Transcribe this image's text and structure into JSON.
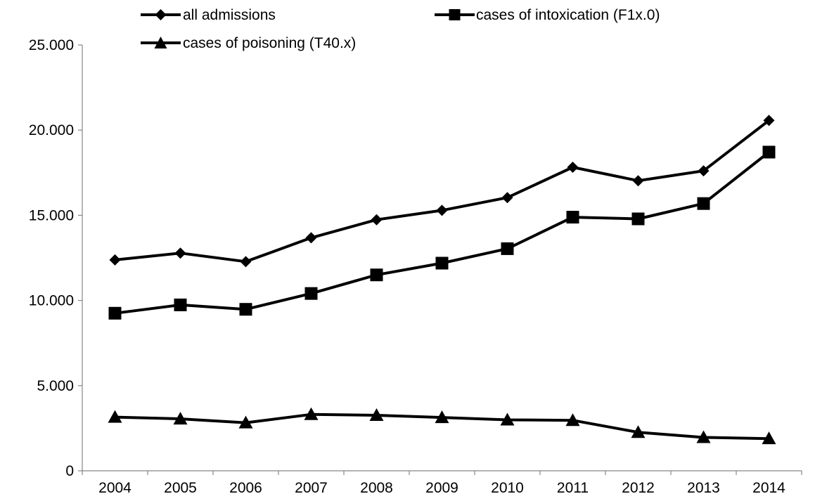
{
  "chart_data": {
    "type": "line",
    "title": "",
    "xlabel": "",
    "ylabel": "",
    "categories": [
      "2004",
      "2005",
      "2006",
      "2007",
      "2008",
      "2009",
      "2010",
      "2011",
      "2012",
      "2013",
      "2014"
    ],
    "y_tick_labels": [
      "0",
      "5.000",
      "10.000",
      "15.000",
      "20.000",
      "25.000"
    ],
    "y_tick_values": [
      0,
      5000,
      10000,
      15000,
      20000,
      25000
    ],
    "ylim": [
      0,
      25000
    ],
    "grid": false,
    "legend_position": "top",
    "line_color": "#000000",
    "series": [
      {
        "name": "all admissions",
        "marker": "diamond",
        "values": [
          12380,
          12780,
          12280,
          13680,
          14740,
          15290,
          16040,
          17820,
          17030,
          17610,
          20570
        ]
      },
      {
        "name": "cases of intoxication (F1x.0)",
        "marker": "square",
        "values": [
          9250,
          9740,
          9480,
          10410,
          11500,
          12190,
          13040,
          14890,
          14790,
          15690,
          18710
        ]
      },
      {
        "name": "cases of poisoning (T40.x)",
        "marker": "triangle",
        "values": [
          3150,
          3050,
          2820,
          3310,
          3260,
          3130,
          2990,
          2960,
          2260,
          1960,
          1890
        ]
      }
    ]
  }
}
